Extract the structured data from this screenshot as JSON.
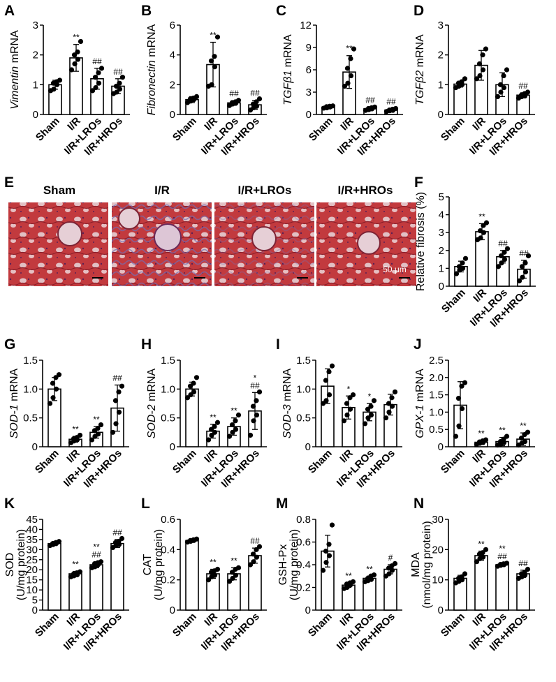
{
  "histology": {
    "panel_label": "E",
    "groups": [
      "Sham",
      "I/R",
      "I/R+LROs",
      "I/R+HROs"
    ],
    "scale_bar_text": "50 μm"
  },
  "chart_data": [
    {
      "panel": "A",
      "type": "bar",
      "ylabel_italic": "Vimentin",
      "ylabel_rest": " mRNA",
      "ylim": [
        0,
        3
      ],
      "yticks": [
        0,
        1,
        2,
        3
      ],
      "categories": [
        "Sham",
        "I/R",
        "I/R+LROs",
        "I/R+HROs"
      ],
      "values": [
        1.0,
        1.9,
        1.2,
        0.95
      ],
      "errors": [
        0.15,
        0.45,
        0.35,
        0.25
      ],
      "points": [
        [
          0.8,
          0.85,
          1.0,
          1.05,
          1.1,
          1.15
        ],
        [
          1.5,
          1.7,
          1.85,
          2.0,
          2.1,
          2.45
        ],
        [
          0.8,
          0.9,
          1.05,
          1.25,
          1.4,
          1.55
        ],
        [
          0.7,
          0.75,
          0.85,
          0.95,
          1.05,
          1.25
        ]
      ],
      "sig": [
        "",
        "**",
        "##",
        "##"
      ]
    },
    {
      "panel": "B",
      "type": "bar",
      "ylabel_italic": "Fibronectin",
      "ylabel_rest": " mRNA",
      "ylim": [
        0,
        6
      ],
      "yticks": [
        0,
        2,
        4,
        6
      ],
      "categories": [
        "Sham",
        "I/R",
        "I/R+LROs",
        "I/R+HROs"
      ],
      "values": [
        1.0,
        3.35,
        0.78,
        0.65
      ],
      "errors": [
        0.2,
        1.5,
        0.15,
        0.3
      ],
      "points": [
        [
          0.8,
          0.9,
          1.0,
          1.05,
          1.1,
          1.2
        ],
        [
          1.9,
          2.0,
          3.2,
          3.6,
          3.9,
          5.2
        ],
        [
          0.6,
          0.7,
          0.75,
          0.8,
          0.85,
          0.95
        ],
        [
          0.3,
          0.45,
          0.55,
          0.7,
          0.85,
          1.05
        ]
      ],
      "sig": [
        "",
        "**",
        "##",
        "##"
      ]
    },
    {
      "panel": "C",
      "type": "bar",
      "ylabel_italic": "TGFβ1",
      "ylabel_rest": " mRNA",
      "ylim": [
        0,
        12
      ],
      "yticks": [
        0,
        3,
        6,
        9,
        12
      ],
      "categories": [
        "Sham",
        "I/R",
        "I/R+LROs",
        "I/R+HROs"
      ],
      "values": [
        1.0,
        5.7,
        0.78,
        0.6
      ],
      "errors": [
        0.15,
        2.2,
        0.2,
        0.2
      ],
      "points": [
        [
          0.85,
          0.9,
          1.0,
          1.05,
          1.1,
          1.15
        ],
        [
          3.8,
          4.2,
          5.2,
          6.2,
          7.5,
          8.8
        ],
        [
          0.55,
          0.65,
          0.75,
          0.8,
          0.9,
          1.0
        ],
        [
          0.4,
          0.5,
          0.55,
          0.6,
          0.7,
          0.8
        ]
      ],
      "sig": [
        "",
        "**",
        "##",
        "##"
      ]
    },
    {
      "panel": "D",
      "type": "bar",
      "ylabel_italic": "TGFβ2",
      "ylabel_rest": " mRNA",
      "ylim": [
        0,
        3
      ],
      "yticks": [
        0,
        1,
        2,
        3
      ],
      "categories": [
        "Sham",
        "I/R",
        "I/R+LROs",
        "I/R+HROs"
      ],
      "values": [
        1.02,
        1.65,
        1.0,
        0.65
      ],
      "errors": [
        0.1,
        0.5,
        0.4,
        0.08
      ],
      "points": [
        [
          0.9,
          0.95,
          1.0,
          1.05,
          1.1,
          1.2
        ],
        [
          1.2,
          1.3,
          1.5,
          1.7,
          2.0,
          2.2
        ],
        [
          0.6,
          0.75,
          0.9,
          1.0,
          1.3,
          1.5
        ],
        [
          0.55,
          0.6,
          0.62,
          0.65,
          0.7,
          0.75
        ]
      ],
      "sig": [
        "",
        "",
        "",
        "##"
      ]
    },
    {
      "panel": "F",
      "type": "bar",
      "ylabel_italic": "",
      "ylabel_rest": "Relative fibrosis (%)",
      "ylim": [
        0,
        5
      ],
      "yticks": [
        0,
        1,
        2,
        3,
        4,
        5
      ],
      "categories": [
        "Sham",
        "I/R",
        "I/R+LROs",
        "I/R+HROs"
      ],
      "values": [
        1.1,
        3.05,
        1.65,
        0.95
      ],
      "errors": [
        0.3,
        0.45,
        0.35,
        0.5
      ],
      "points": [
        [
          0.7,
          0.9,
          1.0,
          1.1,
          1.3,
          1.55
        ],
        [
          2.6,
          2.7,
          3.0,
          3.1,
          3.4,
          3.55
        ],
        [
          1.1,
          1.3,
          1.5,
          1.7,
          1.9,
          2.1
        ],
        [
          0.3,
          0.5,
          0.8,
          1.1,
          1.3,
          1.7
        ]
      ],
      "sig": [
        "",
        "**",
        "##",
        "##"
      ]
    },
    {
      "panel": "G",
      "type": "bar",
      "ylabel_italic": "SOD-1",
      "ylabel_rest": " mRNA",
      "ylim": [
        0,
        1.5
      ],
      "yticks": [
        0,
        0.5,
        1.0,
        1.5
      ],
      "yticklabels": [
        "0",
        "0.5",
        "1.0",
        "1.5"
      ],
      "categories": [
        "Sham",
        "I/R",
        "I/R+LROs",
        "I/R+HROs"
      ],
      "values": [
        1.0,
        0.13,
        0.25,
        0.67
      ],
      "errors": [
        0.2,
        0.05,
        0.1,
        0.4
      ],
      "points": [
        [
          0.75,
          0.85,
          1.0,
          1.1,
          1.2,
          1.25
        ],
        [
          0.07,
          0.1,
          0.12,
          0.14,
          0.16,
          0.2
        ],
        [
          0.12,
          0.18,
          0.22,
          0.28,
          0.32,
          0.38
        ],
        [
          0.25,
          0.4,
          0.6,
          0.8,
          0.95,
          1.05
        ]
      ],
      "sig": [
        "",
        "**",
        "**",
        "##"
      ]
    },
    {
      "panel": "H",
      "type": "bar",
      "ylabel_italic": "SOD-2",
      "ylabel_rest": " mRNA",
      "ylim": [
        0,
        1.5
      ],
      "yticks": [
        0,
        0.5,
        1.0,
        1.5
      ],
      "yticklabels": [
        "0",
        "0.5",
        "1.0",
        "1.5"
      ],
      "categories": [
        "Sham",
        "I/R",
        "I/R+LROs",
        "I/R+HROs"
      ],
      "values": [
        1.0,
        0.27,
        0.35,
        0.62
      ],
      "errors": [
        0.12,
        0.12,
        0.15,
        0.32
      ],
      "points": [
        [
          0.85,
          0.9,
          0.95,
          1.05,
          1.1,
          1.2
        ],
        [
          0.12,
          0.2,
          0.25,
          0.3,
          0.35,
          0.42
        ],
        [
          0.18,
          0.25,
          0.3,
          0.38,
          0.45,
          0.55
        ],
        [
          0.2,
          0.45,
          0.55,
          0.7,
          0.8,
          0.95
        ]
      ],
      "sig": [
        "",
        "**",
        "**",
        "*\n##"
      ]
    },
    {
      "panel": "I",
      "type": "bar",
      "ylabel_italic": "SOD-3",
      "ylabel_rest": " mRNA",
      "ylim": [
        0,
        1.5
      ],
      "yticks": [
        0,
        0.5,
        1.0,
        1.5
      ],
      "yticklabels": [
        "0",
        "0.5",
        "1.0",
        "1.5"
      ],
      "categories": [
        "Sham",
        "I/R",
        "I/R+LROs",
        "I/R+HROs"
      ],
      "values": [
        1.05,
        0.68,
        0.6,
        0.73
      ],
      "errors": [
        0.3,
        0.2,
        0.15,
        0.18
      ],
      "points": [
        [
          0.75,
          0.8,
          0.9,
          1.15,
          1.3,
          1.4
        ],
        [
          0.45,
          0.55,
          0.65,
          0.75,
          0.85,
          0.9
        ],
        [
          0.4,
          0.5,
          0.55,
          0.65,
          0.7,
          0.8
        ],
        [
          0.5,
          0.6,
          0.7,
          0.75,
          0.85,
          0.95
        ]
      ],
      "sig": [
        "",
        "*",
        "*",
        ""
      ]
    },
    {
      "panel": "J",
      "type": "bar",
      "ylabel_italic": "GPX-1",
      "ylabel_rest": " mRNA",
      "ylim": [
        0,
        2.5
      ],
      "yticks": [
        0,
        0.5,
        1.0,
        1.5,
        2.0,
        2.5
      ],
      "yticklabels": [
        "0",
        "0.5",
        "1.0",
        "1.5",
        "2.0",
        "2.5"
      ],
      "categories": [
        "Sham",
        "I/R",
        "I/R+LROs",
        "I/R+HROs"
      ],
      "values": [
        1.2,
        0.13,
        0.15,
        0.22
      ],
      "errors": [
        0.68,
        0.05,
        0.12,
        0.18
      ],
      "points": [
        [
          0.3,
          0.6,
          1.1,
          1.4,
          1.75,
          1.85
        ],
        [
          0.07,
          0.1,
          0.12,
          0.14,
          0.17,
          0.2
        ],
        [
          0.05,
          0.08,
          0.12,
          0.15,
          0.22,
          0.3
        ],
        [
          0.05,
          0.1,
          0.15,
          0.25,
          0.35,
          0.42
        ]
      ],
      "sig": [
        "",
        "**",
        "**",
        "**"
      ]
    },
    {
      "panel": "K",
      "type": "bar",
      "ylabel_italic": "",
      "ylabel_rest": "SOD",
      "ylabel2": "(U/mg protein)",
      "ylim": [
        0,
        45
      ],
      "yticks": [
        0,
        5,
        10,
        15,
        20,
        25,
        30,
        35,
        40,
        45
      ],
      "categories": [
        "Sham",
        "I/R",
        "I/R+LROs",
        "I/R+HROs"
      ],
      "values": [
        33,
        18,
        22.5,
        33
      ],
      "errors": [
        1.0,
        1.2,
        1.5,
        2.0
      ],
      "points": [
        [
          32,
          32.5,
          33,
          33,
          33.5,
          34
        ],
        [
          16.5,
          17,
          17.5,
          18,
          18.5,
          19
        ],
        [
          21,
          21.5,
          22.5,
          23,
          23.5,
          24
        ],
        [
          31,
          32,
          32.5,
          33.5,
          34,
          35.5
        ]
      ],
      "sig": [
        "",
        "**",
        "**\n##",
        "##"
      ]
    },
    {
      "panel": "L",
      "type": "bar",
      "ylabel_italic": "",
      "ylabel_rest": "CAT",
      "ylabel2": "(U/mg protein)",
      "ylim": [
        0,
        0.6
      ],
      "yticks": [
        0,
        0.2,
        0.4,
        0.6
      ],
      "categories": [
        "Sham",
        "I/R",
        "I/R+LROs",
        "I/R+HROs"
      ],
      "values": [
        0.46,
        0.24,
        0.24,
        0.36
      ],
      "errors": [
        0.01,
        0.03,
        0.04,
        0.05
      ],
      "points": [
        [
          0.45,
          0.455,
          0.46,
          0.46,
          0.465,
          0.47
        ],
        [
          0.2,
          0.22,
          0.23,
          0.25,
          0.26,
          0.27
        ],
        [
          0.19,
          0.21,
          0.23,
          0.25,
          0.27,
          0.28
        ],
        [
          0.3,
          0.32,
          0.35,
          0.37,
          0.4,
          0.42
        ]
      ],
      "sig": [
        "",
        "**",
        "**",
        "##"
      ]
    },
    {
      "panel": "M",
      "type": "bar",
      "ylabel_italic": "",
      "ylabel_rest": "GSH-Px",
      "ylabel2": "(U/mg protein)",
      "ylim": [
        0,
        0.8
      ],
      "yticks": [
        0,
        0.2,
        0.4,
        0.6,
        0.8
      ],
      "categories": [
        "Sham",
        "I/R",
        "I/R+LROs",
        "I/R+HROs"
      ],
      "values": [
        0.52,
        0.22,
        0.28,
        0.36
      ],
      "errors": [
        0.14,
        0.02,
        0.02,
        0.04
      ],
      "points": [
        [
          0.35,
          0.42,
          0.48,
          0.52,
          0.58,
          0.75
        ],
        [
          0.19,
          0.2,
          0.22,
          0.23,
          0.24,
          0.25
        ],
        [
          0.25,
          0.26,
          0.27,
          0.28,
          0.3,
          0.31
        ],
        [
          0.3,
          0.32,
          0.35,
          0.37,
          0.39,
          0.41
        ]
      ],
      "sig": [
        "",
        "**",
        "**",
        "#"
      ]
    },
    {
      "panel": "N",
      "type": "bar",
      "ylabel_italic": "",
      "ylabel_rest": "MDA",
      "ylabel2": "(nmol/mg protein)",
      "ylim": [
        0,
        30
      ],
      "yticks": [
        0,
        10,
        20,
        30
      ],
      "categories": [
        "Sham",
        "I/R",
        "I/R+LROs",
        "I/R+HROs"
      ],
      "values": [
        10.5,
        18,
        15,
        12
      ],
      "errors": [
        1.0,
        1.5,
        0.5,
        1.2
      ],
      "points": [
        [
          9,
          9.5,
          10,
          10.5,
          11,
          12
        ],
        [
          16,
          17,
          17.5,
          18.5,
          19,
          20
        ],
        [
          14.5,
          14.8,
          15,
          15.1,
          15.3,
          15.5
        ],
        [
          10.5,
          11,
          11.5,
          12,
          12.5,
          13.5
        ]
      ],
      "sig": [
        "",
        "**",
        "**\n##",
        "##"
      ]
    }
  ]
}
